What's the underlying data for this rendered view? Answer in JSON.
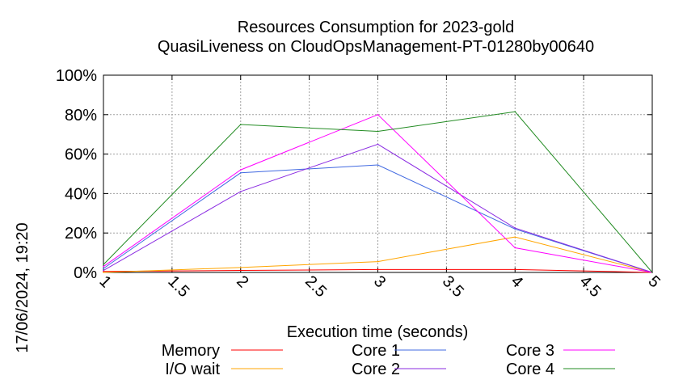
{
  "chart_data": {
    "type": "line",
    "title": "Resources Consumption for 2023-gold",
    "subtitle": "QuasiLiveness on CloudOpsManagement-PT-01280by00640",
    "xlabel": "Execution time (seconds)",
    "ylabel": "",
    "timestamp": "17/06/2024, 19:20",
    "xlim": [
      1,
      5
    ],
    "ylim": [
      0,
      100
    ],
    "x_ticks": [
      "1",
      "1.5",
      "2",
      "2.5",
      "3",
      "3.5",
      "4",
      "4.5",
      "5"
    ],
    "y_ticks": [
      "0%",
      "20%",
      "40%",
      "60%",
      "80%",
      "100%"
    ],
    "grid": true,
    "legend_position": "bottom",
    "x": [
      1,
      2,
      3,
      4,
      5
    ],
    "series": [
      {
        "name": "Memory",
        "color": "#ff0000",
        "values": [
          0.5,
          1,
          1.5,
          1.5,
          0
        ]
      },
      {
        "name": "I/O wait",
        "color": "#ffa500",
        "values": [
          0,
          2.5,
          5.5,
          18,
          0
        ]
      },
      {
        "name": "Core 1",
        "color": "#4169e1",
        "values": [
          2,
          50.5,
          54.5,
          22,
          0
        ]
      },
      {
        "name": "Core 2",
        "color": "#8a2be2",
        "values": [
          1,
          41,
          65,
          22.5,
          0
        ]
      },
      {
        "name": "Core 3",
        "color": "#ff00ff",
        "values": [
          3,
          52,
          80,
          12.5,
          0
        ]
      },
      {
        "name": "Core 4",
        "color": "#228b22",
        "values": [
          4,
          75,
          71.5,
          81.5,
          0
        ]
      }
    ]
  }
}
